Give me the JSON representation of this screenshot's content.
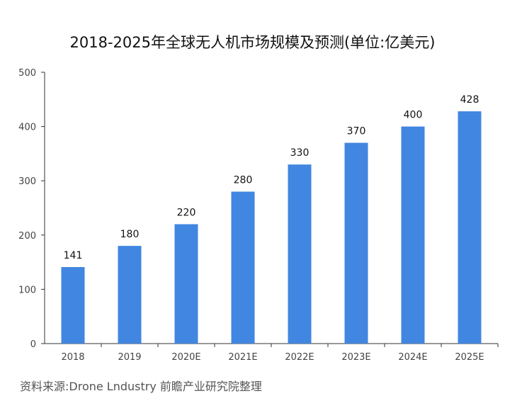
{
  "chart_data": {
    "type": "bar",
    "title": "2018-2025年全球无人机市场规模及预测(单位:亿美元)",
    "categories": [
      "2018",
      "2019",
      "2020E",
      "2021E",
      "2022E",
      "2023E",
      "2024E",
      "2025E"
    ],
    "values": [
      141,
      180,
      220,
      280,
      330,
      370,
      400,
      428
    ],
    "data_labels": [
      "141",
      "180",
      "220",
      "280",
      "330",
      "370",
      "400",
      "428"
    ],
    "ylim": [
      0,
      500
    ],
    "yticks": [
      0,
      100,
      200,
      300,
      400,
      500
    ],
    "ytick_labels": [
      "0",
      "100",
      "200",
      "300",
      "400",
      "500"
    ],
    "grid": false,
    "bar_color": "#4186e0",
    "source": "资料来源:Drone Lndustry 前瞻产业研究院整理"
  }
}
